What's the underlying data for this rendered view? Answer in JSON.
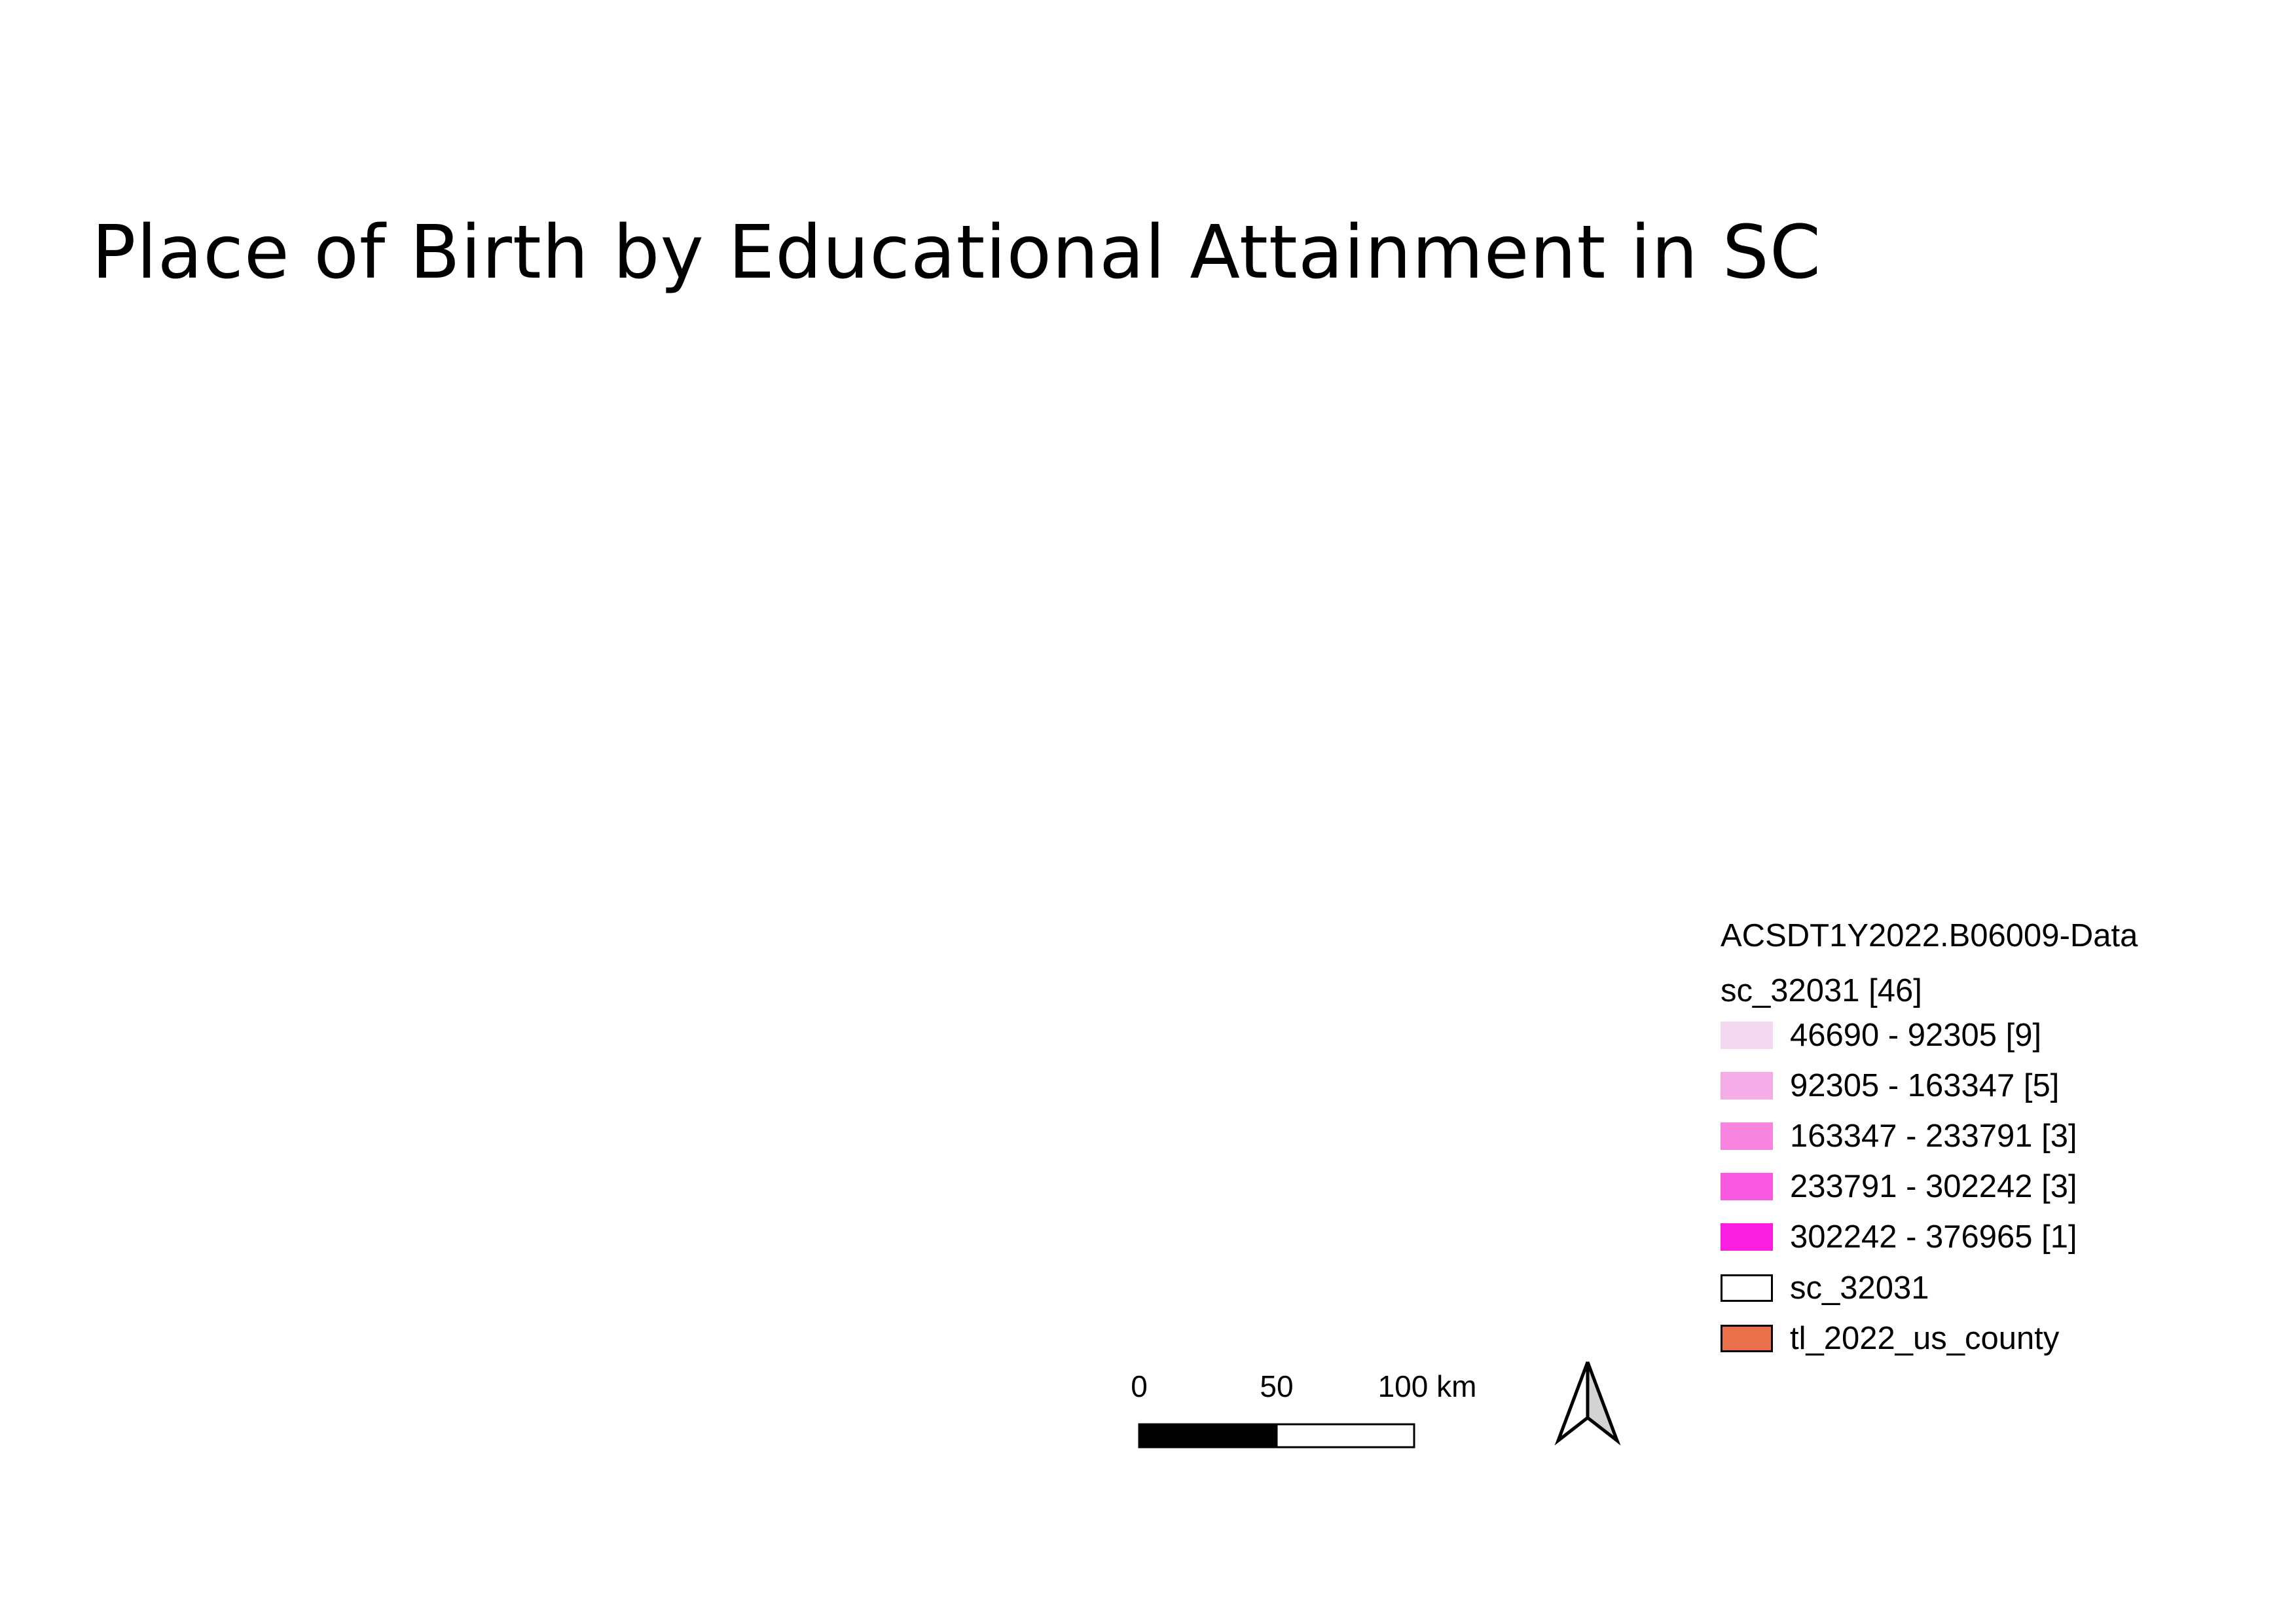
{
  "title": "Place of Birth by Educational Attainment in SC",
  "legend": {
    "group_title": "ACSDT1Y2022.B06009-Data",
    "layer_title": "sc_32031 [46]",
    "classes": [
      {
        "label": "46690 - 92305 [9]",
        "color": "#f2d9ef",
        "outlined": false
      },
      {
        "label": "92305 - 163347 [5]",
        "color": "#f5ade8",
        "outlined": false
      },
      {
        "label": "163347 - 233791 [3]",
        "color": "#f785e0",
        "outlined": false
      },
      {
        "label": "233791 - 302242 [3]",
        "color": "#f859e0",
        "outlined": false
      },
      {
        "label": "302242 - 376965 [1]",
        "color": "#fa1ee0",
        "outlined": false
      },
      {
        "label": "sc_32031",
        "color": "#ffffff",
        "outlined": true
      },
      {
        "label": "tl_2022_us_county",
        "color": "#e8714c",
        "outlined": true
      }
    ]
  },
  "scalebar": {
    "labels": [
      "0",
      "50",
      "100 km"
    ]
  },
  "north_arrow": {
    "icon": "north-arrow-icon"
  }
}
